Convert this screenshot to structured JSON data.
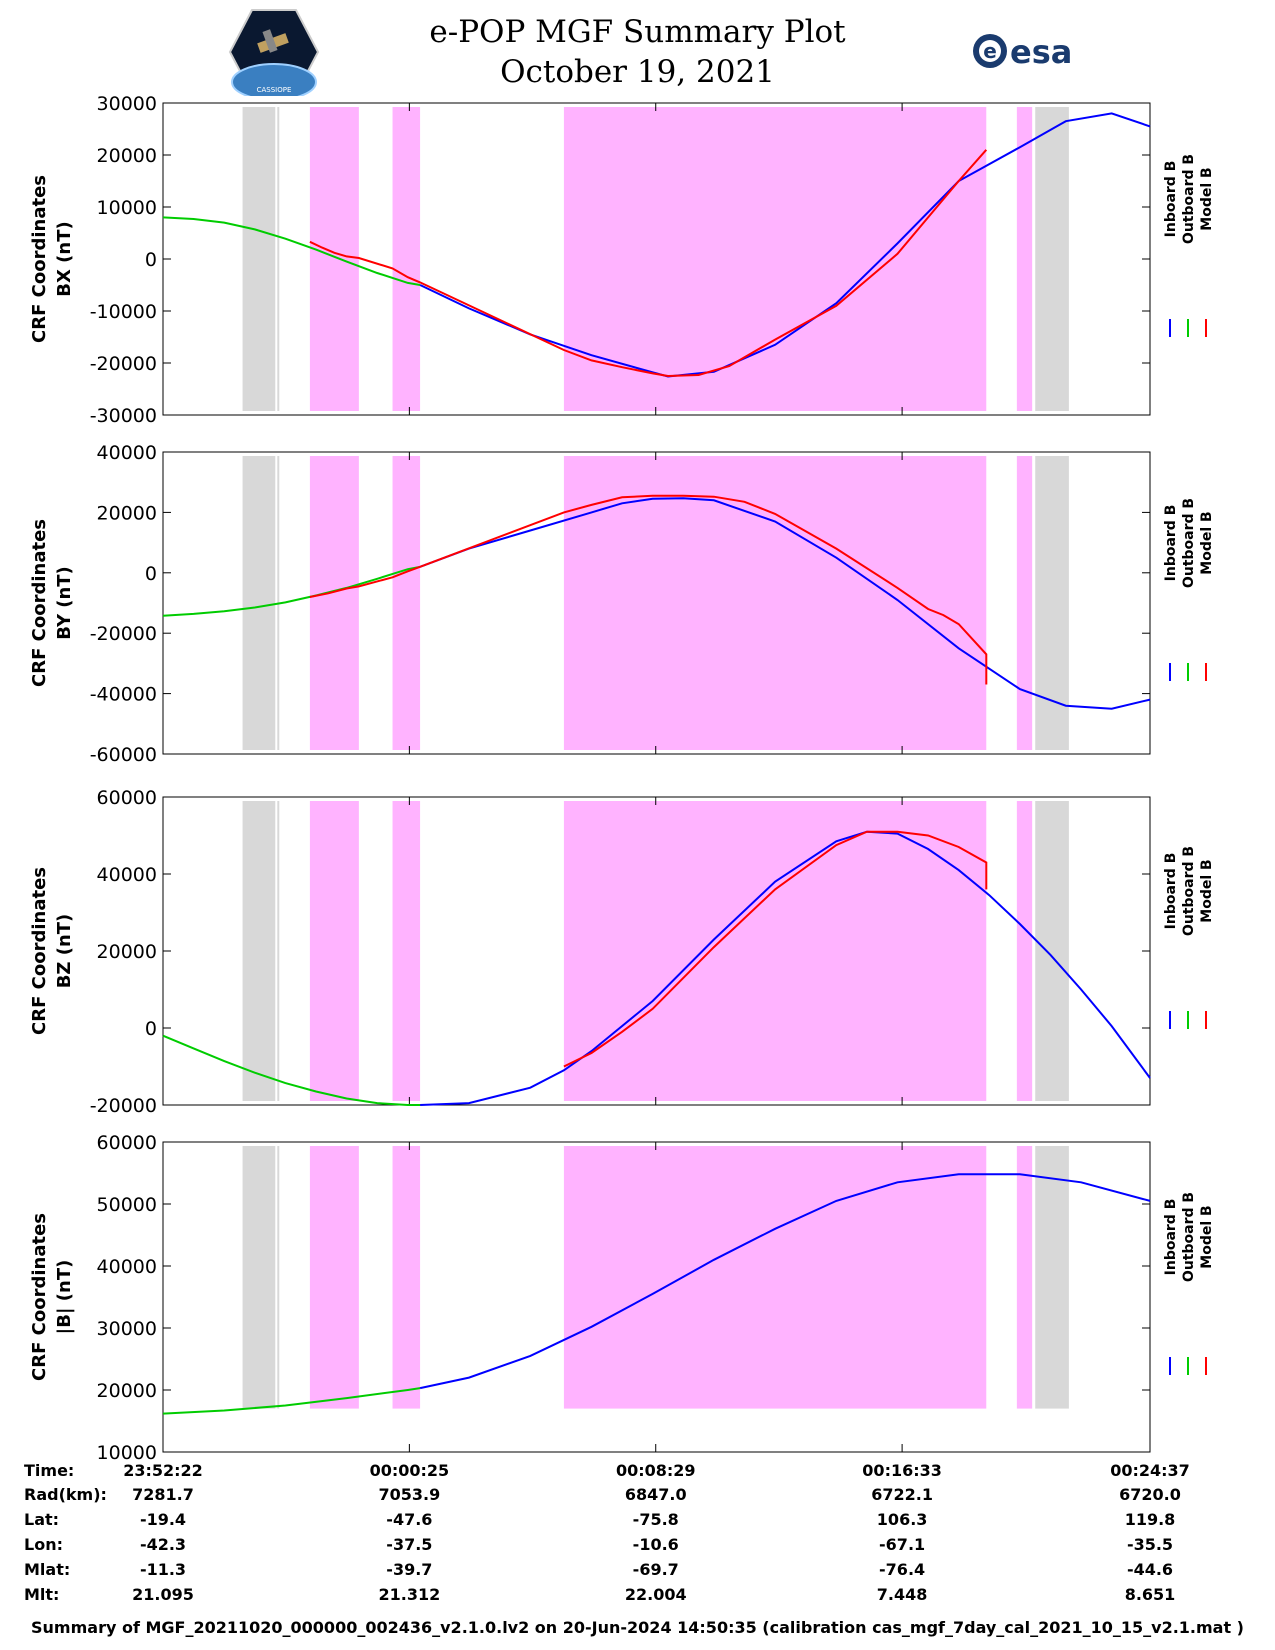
{
  "title": {
    "line1": "e-POP MGF Summary Plot",
    "line2": "October 19, 2021"
  },
  "logos": {
    "left_caption": "CASSIOPE",
    "right_text": "esa",
    "right_letter": "e"
  },
  "colors": {
    "inboard": "#0000ff",
    "outboard": "#00cc00",
    "model": "#ff0000",
    "eclipse": "#d8d8d8",
    "magenta": "#ffb3ff"
  },
  "legend": [
    "Inboard B",
    "Outboard B",
    "Model B"
  ],
  "time_ticks": [
    "23:52:22",
    "00:00:25",
    "00:08:29",
    "00:16:33",
    "00:24:37"
  ],
  "shaded_intervals_min": {
    "gray": [
      [
        2.6,
        3.8
      ],
      [
        28.5,
        29.6
      ]
    ],
    "magenta": [
      [
        4.8,
        6.4
      ],
      [
        7.5,
        8.4
      ],
      [
        13.1,
        26.9
      ],
      [
        27.9,
        28.4
      ]
    ]
  },
  "chart_data": [
    {
      "type": "line",
      "ylabel_top": "CRF Coordinates",
      "ylabel": "BX (nT)",
      "ylim": [
        -30000,
        30000
      ],
      "yticks": [
        -30000,
        -20000,
        -10000,
        0,
        10000,
        20000,
        30000
      ],
      "x_unit": "minutes from 23:52:22",
      "xlim": [
        0,
        32.25
      ],
      "series": [
        {
          "name": "Inboard B",
          "x": [
            8.4,
            10,
            12,
            14,
            16,
            16.5,
            18,
            20,
            22,
            24,
            26,
            28,
            29.5,
            31,
            32.25
          ],
          "values": [
            -5000,
            -9500,
            -14500,
            -18500,
            -21800,
            -22600,
            -21700,
            -16500,
            -8500,
            3000,
            15000,
            21500,
            26500,
            28000,
            25500
          ]
        },
        {
          "name": "Outboard B",
          "x": [
            0,
            1,
            2,
            3,
            4,
            5,
            6,
            7,
            8,
            8.4
          ],
          "values": [
            8000,
            7700,
            7000,
            5700,
            3900,
            1800,
            -500,
            -2700,
            -4600,
            -5000
          ]
        },
        {
          "name": "Model B",
          "x": [
            4.8,
            5.2,
            5.6,
            6.0,
            6.4,
            7.5,
            8.0,
            8.4,
            13.1,
            14,
            15,
            16,
            16.5,
            17.5,
            18.5,
            20,
            22,
            24,
            25,
            26,
            26.9
          ],
          "values": [
            3300,
            2200,
            1200,
            500,
            200,
            -1800,
            -3500,
            -4500,
            -17500,
            -19500,
            -20800,
            -22000,
            -22500,
            -22300,
            -20600,
            -15500,
            -9000,
            1000,
            8000,
            15000,
            21000
          ]
        }
      ]
    },
    {
      "type": "line",
      "ylabel_top": "CRF Coordinates",
      "ylabel": "BY (nT)",
      "ylim": [
        -60000,
        40000
      ],
      "yticks": [
        -60000,
        -40000,
        -20000,
        0,
        20000,
        40000
      ],
      "x_unit": "minutes from 23:52:22",
      "xlim": [
        0,
        32.25
      ],
      "series": [
        {
          "name": "Inboard B",
          "x": [
            8.4,
            10,
            12,
            14,
            15,
            16,
            17,
            18,
            20,
            22,
            24,
            26,
            28,
            29.5,
            31,
            32.25
          ],
          "values": [
            2000,
            8000,
            14000,
            20000,
            23000,
            24500,
            24700,
            24000,
            17000,
            5000,
            -9000,
            -25000,
            -38500,
            -44000,
            -45000,
            -42000
          ]
        },
        {
          "name": "Outboard B",
          "x": [
            0,
            1,
            2,
            3,
            4,
            5,
            6,
            7,
            8,
            8.4
          ],
          "values": [
            -14200,
            -13600,
            -12700,
            -11500,
            -9800,
            -7500,
            -5000,
            -2000,
            1200,
            2000
          ]
        },
        {
          "name": "Model B",
          "x": [
            4.8,
            5.4,
            6.0,
            6.4,
            7.5,
            8.0,
            8.4,
            13.1,
            14,
            15,
            16,
            17,
            18,
            19,
            20,
            22,
            24,
            25,
            25.5,
            26,
            26.9,
            26.9
          ],
          "values": [
            -8000,
            -6800,
            -5200,
            -4500,
            -1500,
            500,
            2000,
            20000,
            22500,
            25000,
            25500,
            25500,
            25200,
            23500,
            19500,
            8000,
            -5000,
            -12000,
            -14000,
            -17000,
            -27000,
            -37000
          ]
        }
      ]
    },
    {
      "type": "line",
      "ylabel_top": "CRF Coordinates",
      "ylabel": "BZ (nT)",
      "ylim": [
        -20000,
        60000
      ],
      "yticks": [
        -20000,
        0,
        20000,
        40000,
        60000
      ],
      "x_unit": "minutes from 23:52:22",
      "xlim": [
        0,
        32.25
      ],
      "series": [
        {
          "name": "Inboard B",
          "x": [
            8.4,
            10,
            12,
            13.1,
            14,
            16,
            18,
            20,
            22,
            23,
            24,
            25,
            26,
            27,
            28,
            29,
            30,
            31,
            32.25
          ],
          "values": [
            -20000,
            -19500,
            -15500,
            -11000,
            -6000,
            7000,
            23000,
            38000,
            48500,
            51000,
            50500,
            46500,
            41000,
            34500,
            27000,
            19000,
            10000,
            500,
            -13000
          ]
        },
        {
          "name": "Outboard B",
          "x": [
            0,
            1,
            2,
            3,
            4,
            5,
            6,
            7,
            8,
            8.4
          ],
          "values": [
            -2000,
            -5300,
            -8600,
            -11600,
            -14300,
            -16500,
            -18300,
            -19500,
            -20000,
            -20000
          ]
        },
        {
          "name": "Model B",
          "x": [
            13.1,
            14,
            15,
            16,
            18,
            20,
            22,
            23,
            24,
            25,
            26,
            26.9,
            26.9
          ],
          "values": [
            -10000,
            -6500,
            -1000,
            5000,
            21000,
            36000,
            47500,
            51000,
            51000,
            50000,
            47000,
            43000,
            36000
          ]
        }
      ]
    },
    {
      "type": "line",
      "ylabel_top": "CRF Coordinates",
      "ylabel": "|B| (nT)",
      "ylim": [
        10000,
        60000
      ],
      "yticks": [
        10000,
        20000,
        30000,
        40000,
        50000,
        60000
      ],
      "x_unit": "minutes from 23:52:22",
      "xlim": [
        0,
        32.25
      ],
      "series": [
        {
          "name": "Inboard B",
          "x": [
            8.4,
            10,
            12,
            14,
            16,
            18,
            20,
            22,
            24,
            26,
            28,
            30,
            32.25
          ],
          "values": [
            20300,
            22000,
            25500,
            30200,
            35500,
            41000,
            46000,
            50500,
            53500,
            54800,
            54800,
            53500,
            50500
          ]
        },
        {
          "name": "Outboard B",
          "x": [
            0,
            2,
            4,
            6,
            8,
            8.4
          ],
          "values": [
            16200,
            16700,
            17500,
            18700,
            20000,
            20300
          ]
        },
        {
          "name": "Model B",
          "x": [],
          "values": []
        }
      ]
    }
  ],
  "ephemeris": {
    "labels": [
      "Time:",
      "Rad(km):",
      "Lat:",
      "Lon:",
      "Mlat:",
      "Mlt:"
    ],
    "columns": [
      [
        "23:52:22",
        "7281.7",
        "-19.4",
        "-42.3",
        "-11.3",
        "21.095"
      ],
      [
        "00:00:25",
        "7053.9",
        "-47.6",
        "-37.5",
        "-39.7",
        "21.312"
      ],
      [
        "00:08:29",
        "6847.0",
        "-75.8",
        "-10.6",
        "-69.7",
        "22.004"
      ],
      [
        "00:16:33",
        "6722.1",
        "106.3",
        "-67.1",
        "-76.4",
        "7.448"
      ],
      [
        "00:24:37",
        "6720.0",
        "119.8",
        "-35.5",
        "-44.6",
        "8.651"
      ]
    ]
  },
  "footer": "Summary of MGF_20211020_000000_002436_v2.1.0.lv2 on 20-Jun-2024 14:50:35 (calibration cas_mgf_7day_cal_2021_10_15_v2.1.mat )"
}
